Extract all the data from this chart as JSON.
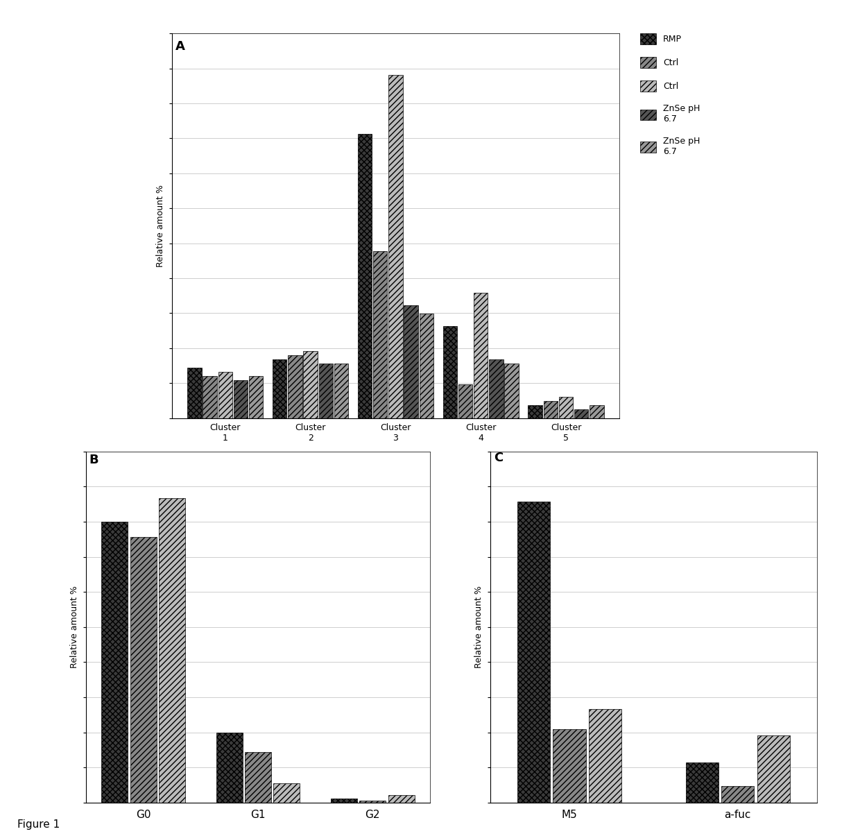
{
  "figure_label": "Figure 1",
  "legend_labels": [
    "RMP",
    "Ctrl",
    "Ctrl",
    "ZnSe pH\n6.7",
    "ZnSe pH\n6.7"
  ],
  "A_categories": [
    "Cluster\n1",
    "Cluster\n2",
    "Cluster\n3",
    "Cluster\n4",
    "Cluster\n5"
  ],
  "A_data": [
    [
      12,
      14,
      68,
      22,
      3
    ],
    [
      10,
      15,
      40,
      8,
      4
    ],
    [
      11,
      16,
      82,
      30,
      5
    ],
    [
      9,
      13,
      27,
      14,
      2
    ],
    [
      10,
      13,
      25,
      13,
      3
    ]
  ],
  "B_categories": [
    "G0",
    "G1",
    "G2"
  ],
  "B_data": [
    [
      72,
      18,
      1
    ],
    [
      68,
      13,
      0.5
    ],
    [
      78,
      5,
      2
    ]
  ],
  "C_categories": [
    "M5",
    "a-fuc"
  ],
  "C_data": [
    [
      90,
      12
    ],
    [
      22,
      5
    ],
    [
      28,
      20
    ]
  ],
  "ylabel": "Relative amount %",
  "background": "#ffffff",
  "grid_color": "#aaaaaa",
  "colors_A": [
    "#3a3a3a",
    "#888888",
    "#bbbbbb",
    "#555555",
    "#999999"
  ],
  "colors_B": [
    "#3a3a3a",
    "#888888",
    "#bbbbbb"
  ],
  "colors_C": [
    "#3a3a3a",
    "#888888",
    "#bbbbbb"
  ]
}
